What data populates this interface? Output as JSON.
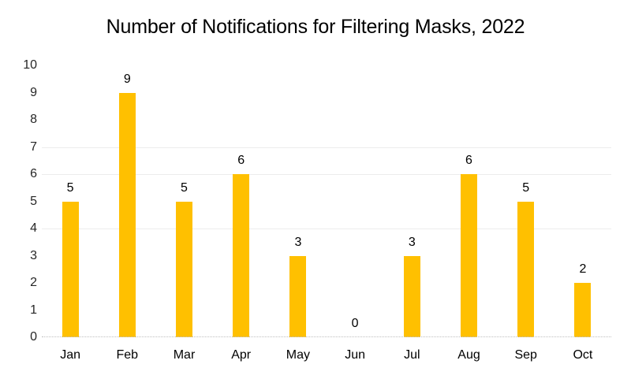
{
  "chart_data": {
    "type": "bar",
    "title": "Number of Notifications for Filtering Masks, 2022",
    "categories": [
      "Jan",
      "Feb",
      "Mar",
      "Apr",
      "May",
      "Jun",
      "Jul",
      "Aug",
      "Sep",
      "Oct"
    ],
    "values": [
      5,
      9,
      5,
      6,
      3,
      0,
      3,
      6,
      5,
      2
    ],
    "xlabel": "",
    "ylabel": "",
    "ylim": [
      0,
      10
    ],
    "yticks": [
      0,
      1,
      2,
      3,
      4,
      5,
      6,
      7,
      8,
      9,
      10
    ],
    "legend": "none",
    "data_labels": "integer value above each bar",
    "visible_gridline_values": [
      4,
      6,
      7
    ],
    "colors": {
      "bar": "#FFC000",
      "title_text": "#000000",
      "label_text": "#000000",
      "axis_tick_text": "#262626",
      "gridline": "#ececec",
      "axis_line": "#bfbfbf"
    }
  }
}
